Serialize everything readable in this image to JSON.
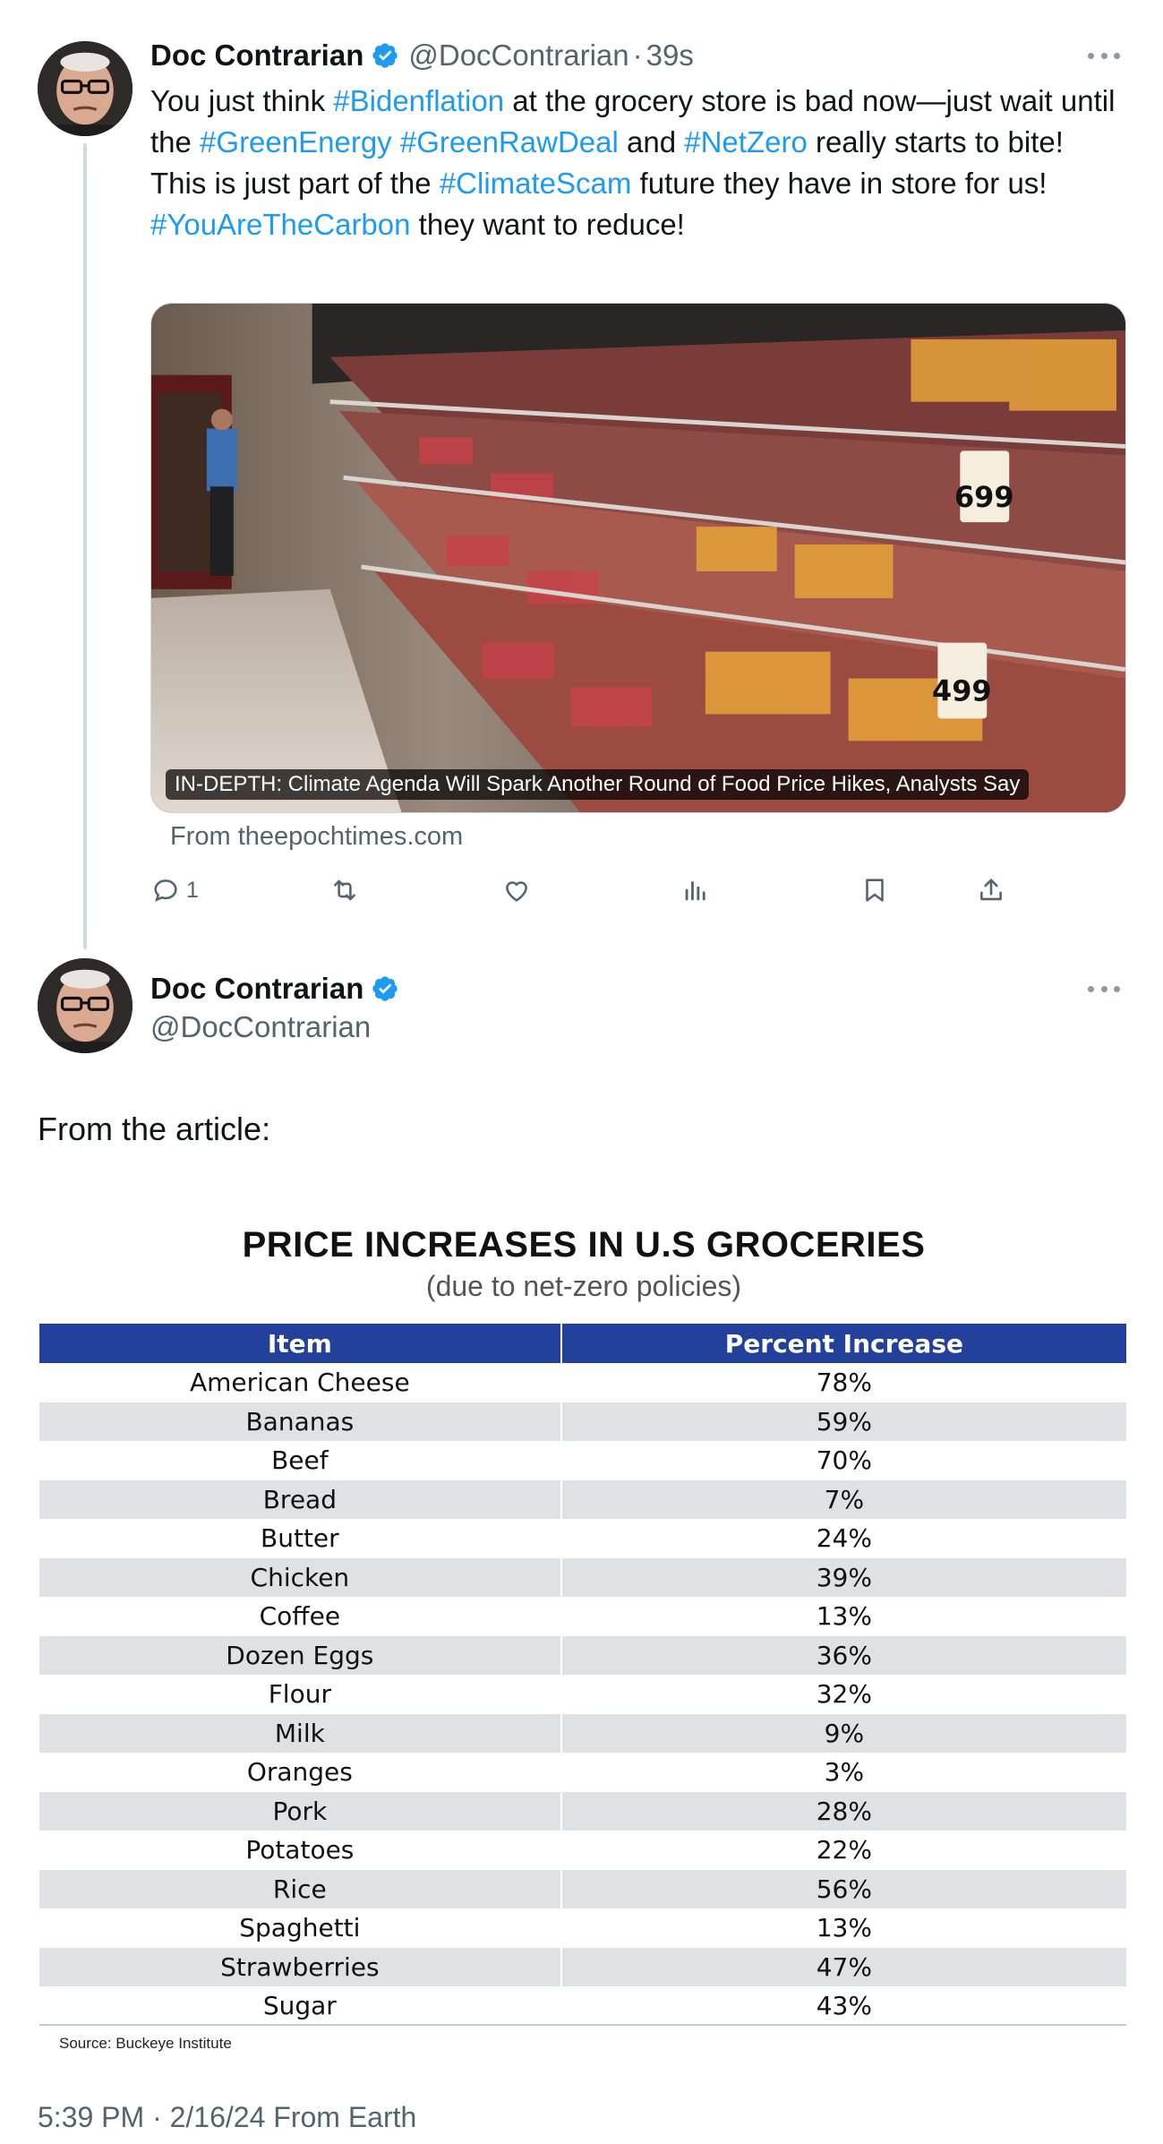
{
  "tweet1": {
    "name": "Doc Contrarian",
    "handle": "@DocContrarian",
    "separator": "·",
    "time": "39s",
    "text": {
      "line1_a": "You just think ",
      "tag_bidenflation": "#Bidenflation",
      "line1_b": " at the grocery store is bad now—just wait until the ",
      "tag_greenenergy": "#GreenEnergy",
      "tag_greenrawdeal": "#GreenRawDeal",
      "and": " and ",
      "tag_netzero": "#NetZero",
      "line1_c": " really starts to bite!",
      "line2_a": "This is just part of the ",
      "tag_climatescam": "#ClimateScam",
      "line2_b": " future they have in store for us!",
      "tag_youarethecarbon": "#YouAreTheCarbon",
      "line3_b": " they want to reduce!"
    },
    "media_caption": "IN-DEPTH: Climate Agenda Will Spark Another Round of Food Price Hikes, Analysts Say",
    "media_source": "From theepochtimes.com",
    "price_tags": [
      "699",
      "499"
    ],
    "actions": {
      "reply_count": "1"
    }
  },
  "tweet2": {
    "name": "Doc Contrarian",
    "handle": "@DocContrarian",
    "text": "From the article:",
    "table": {
      "title": "PRICE INCREASES IN U.S GROCERIES",
      "subtitle": "(due to net-zero policies)",
      "headers": [
        "Item",
        "Percent Increase"
      ],
      "rows": [
        [
          "American Cheese",
          "78%"
        ],
        [
          "Bananas",
          "59%"
        ],
        [
          "Beef",
          "70%"
        ],
        [
          "Bread",
          "7%"
        ],
        [
          "Butter",
          "24%"
        ],
        [
          "Chicken",
          "39%"
        ],
        [
          "Coffee",
          "13%"
        ],
        [
          "Dozen Eggs",
          "36%"
        ],
        [
          "Flour",
          "32%"
        ],
        [
          "Milk",
          "9%"
        ],
        [
          "Oranges",
          "3%"
        ],
        [
          "Pork",
          "28%"
        ],
        [
          "Potatoes",
          "22%"
        ],
        [
          "Rice",
          "56%"
        ],
        [
          "Spaghetti",
          "13%"
        ],
        [
          "Strawberries",
          "47%"
        ],
        [
          "Sugar",
          "43%"
        ]
      ],
      "source": "Source: Buckeye Institute"
    },
    "footer": "5:39 PM · 2/16/24 From Earth"
  },
  "colors": {
    "accent": "#1d9bf0",
    "secondary_text": "#536471",
    "table_header": "#23409a",
    "table_alt_row": "#dfe1e4"
  },
  "icons": [
    "verified-badge-icon",
    "more-icon",
    "reply-icon",
    "retweet-icon",
    "like-icon",
    "views-icon",
    "bookmark-icon",
    "share-icon"
  ]
}
